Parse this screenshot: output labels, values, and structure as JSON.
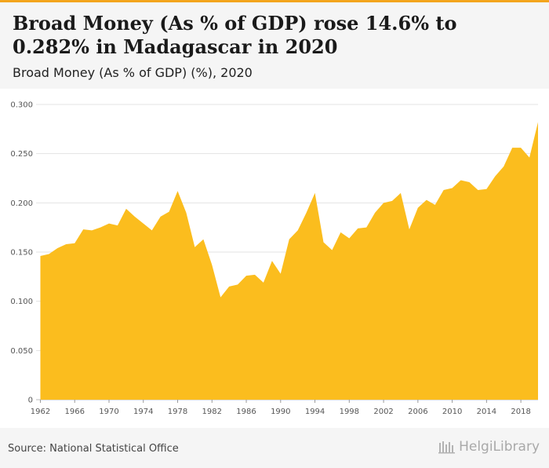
{
  "header": {
    "title": "Broad Money (As % of GDP) rose 14.6% to 0.282% in Madagascar in 2020",
    "subtitle": "Broad Money (As % of GDP) (%), 2020"
  },
  "footer": {
    "source": "Source: National Statistical Office",
    "brand": "HelgiLibrary"
  },
  "colors": {
    "accent": "#f3a51d",
    "area_fill": "#fbbd1e",
    "grid": "#e3e3e3"
  },
  "chart_data": {
    "type": "area",
    "title": "Broad Money (As % of GDP) rose 14.6% to 0.282% in Madagascar in 2020",
    "subtitle": "Broad Money (As % of GDP) (%), 2020",
    "xlabel": "",
    "ylabel": "",
    "ylim": [
      0,
      0.3
    ],
    "y_ticks": [
      "0",
      "0.050",
      "0.100",
      "0.150",
      "0.200",
      "0.250",
      "0.300"
    ],
    "y_tick_values": [
      0,
      0.05,
      0.1,
      0.15,
      0.2,
      0.25,
      0.3
    ],
    "x_ticks": [
      1962,
      1966,
      1970,
      1974,
      1978,
      1982,
      1986,
      1990,
      1994,
      1998,
      2002,
      2006,
      2010,
      2014,
      2018
    ],
    "grid": true,
    "x": [
      1962,
      1963,
      1964,
      1965,
      1966,
      1967,
      1968,
      1969,
      1970,
      1971,
      1972,
      1973,
      1974,
      1975,
      1976,
      1977,
      1978,
      1979,
      1980,
      1981,
      1982,
      1983,
      1984,
      1985,
      1986,
      1987,
      1988,
      1989,
      1990,
      1991,
      1992,
      1993,
      1994,
      1995,
      1996,
      1997,
      1998,
      1999,
      2000,
      2001,
      2002,
      2003,
      2004,
      2005,
      2006,
      2007,
      2008,
      2009,
      2010,
      2011,
      2012,
      2013,
      2014,
      2015,
      2016,
      2017,
      2018,
      2019,
      2020
    ],
    "series": [
      {
        "values": [
          0.146,
          0.148,
          0.154,
          0.158,
          0.159,
          0.173,
          0.172,
          0.175,
          0.179,
          0.177,
          0.194,
          0.186,
          0.179,
          0.172,
          0.186,
          0.191,
          0.212,
          0.19,
          0.155,
          0.163,
          0.137,
          0.104,
          0.115,
          0.117,
          0.126,
          0.127,
          0.119,
          0.141,
          0.128,
          0.163,
          0.172,
          0.19,
          0.21,
          0.16,
          0.152,
          0.17,
          0.164,
          0.174,
          0.175,
          0.19,
          0.2,
          0.202,
          0.21,
          0.173,
          0.195,
          0.203,
          0.198,
          0.213,
          0.215,
          0.223,
          0.221,
          0.213,
          0.214,
          0.227,
          0.237,
          0.256,
          0.256,
          0.246,
          0.282
        ]
      }
    ]
  }
}
